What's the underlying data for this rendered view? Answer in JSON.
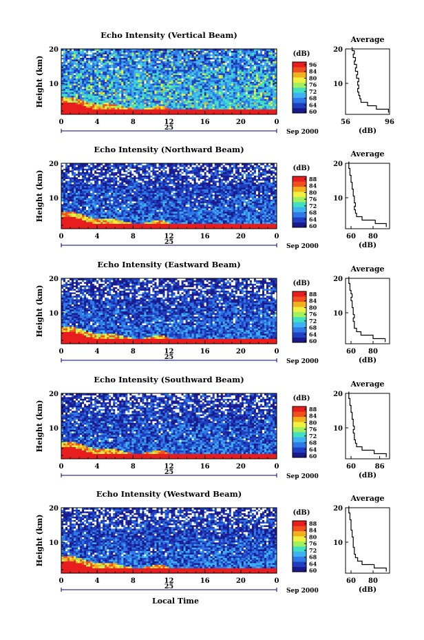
{
  "chart_data": [
    {
      "type": "heatmap",
      "title": "Echo Intensity (Vertical Beam)",
      "ylabel": "Height (km)",
      "x_ticks": [
        "0",
        "4",
        "8",
        "12",
        "16",
        "20",
        "0"
      ],
      "xlim": [
        0,
        24
      ],
      "y_ticks": [
        "10",
        "20"
      ],
      "ylim": [
        1,
        20
      ],
      "date_day": "25",
      "date_month_year": "Sep 2000",
      "colorbar": {
        "unit": "(dB)",
        "ticks": [
          "96",
          "84",
          "80",
          "76",
          "72",
          "68",
          "64",
          "60"
        ],
        "range": [
          60,
          96
        ]
      },
      "profile": {
        "title": "Average",
        "xlabel": "(dB)",
        "x_ticks": [
          "56",
          "96"
        ],
        "xlim": [
          56,
          96
        ],
        "y_ticks": [
          "10",
          "20"
        ],
        "ylim": [
          1,
          20
        ],
        "heights": [
          2,
          3,
          4,
          5,
          6,
          7,
          8,
          9,
          10,
          11,
          12,
          13,
          14,
          15,
          16,
          17,
          18,
          19,
          20
        ],
        "values": [
          95,
          84,
          76,
          70,
          69,
          68,
          67,
          68,
          67,
          68,
          66,
          67,
          65,
          66,
          64,
          65,
          63,
          64,
          62
        ]
      }
    },
    {
      "type": "heatmap",
      "title": "Echo Intensity (Northward Beam)",
      "ylabel": "Height (km)",
      "x_ticks": [
        "0",
        "4",
        "8",
        "12",
        "16",
        "20",
        "0"
      ],
      "xlim": [
        0,
        24
      ],
      "y_ticks": [
        "10",
        "20"
      ],
      "ylim": [
        1,
        20
      ],
      "date_day": "25",
      "date_month_year": "Sep 2000",
      "colorbar": {
        "unit": "(dB)",
        "ticks": [
          "88",
          "84",
          "80",
          "76",
          "72",
          "68",
          "64",
          "60"
        ],
        "range": [
          60,
          88
        ]
      },
      "profile": {
        "title": "Average",
        "xlabel": "(dB)",
        "x_ticks": [
          "60",
          "80"
        ],
        "xlim": [
          55,
          95
        ],
        "y_ticks": [
          "10",
          "20"
        ],
        "ylim": [
          1,
          20
        ],
        "heights": [
          2,
          3,
          4,
          5,
          6,
          7,
          8,
          9,
          10,
          11,
          12,
          13,
          14,
          15,
          16,
          17,
          18,
          19,
          20
        ],
        "values": [
          92,
          82,
          70,
          65,
          64,
          63,
          64,
          63,
          63,
          62,
          62,
          61,
          61,
          60,
          60,
          59,
          59,
          58,
          58
        ]
      }
    },
    {
      "type": "heatmap",
      "title": "Echo Intensity (Eastward Beam)",
      "ylabel": "Height (km)",
      "x_ticks": [
        "0",
        "4",
        "8",
        "12",
        "16",
        "20",
        "0"
      ],
      "xlim": [
        0,
        24
      ],
      "y_ticks": [
        "10",
        "20"
      ],
      "ylim": [
        1,
        20
      ],
      "date_day": "25",
      "date_month_year": "Sep 2000",
      "colorbar": {
        "unit": "(dB)",
        "ticks": [
          "88",
          "84",
          "80",
          "76",
          "72",
          "68",
          "64",
          "60"
        ],
        "range": [
          60,
          88
        ]
      },
      "profile": {
        "title": "Average",
        "xlabel": "(dB)",
        "x_ticks": [
          "60",
          "80"
        ],
        "xlim": [
          55,
          95
        ],
        "y_ticks": [
          "10",
          "20"
        ],
        "ylim": [
          1,
          20
        ],
        "heights": [
          2,
          3,
          4,
          5,
          6,
          7,
          8,
          9,
          10,
          11,
          12,
          13,
          14,
          15,
          16,
          17,
          18,
          19,
          20
        ],
        "values": [
          91,
          80,
          69,
          65,
          63,
          63,
          62,
          63,
          62,
          62,
          61,
          61,
          60,
          61,
          60,
          59,
          59,
          58,
          58
        ]
      }
    },
    {
      "type": "heatmap",
      "title": "Echo Intensity (Southward Beam)",
      "ylabel": "Height (km)",
      "x_ticks": [
        "0",
        "4",
        "8",
        "12",
        "16",
        "20",
        "0"
      ],
      "xlim": [
        0,
        24
      ],
      "y_ticks": [
        "10",
        "20"
      ],
      "ylim": [
        1,
        20
      ],
      "date_day": "25",
      "date_month_year": "Sep 2000",
      "colorbar": {
        "unit": "(dB)",
        "ticks": [
          "88",
          "84",
          "80",
          "76",
          "72",
          "68",
          "64",
          "60"
        ],
        "range": [
          60,
          88
        ]
      },
      "profile": {
        "title": "Average",
        "xlabel": "(dB)",
        "x_ticks": [
          "60",
          "86"
        ],
        "xlim": [
          55,
          95
        ],
        "y_ticks": [
          "10",
          "20"
        ],
        "ylim": [
          1,
          20
        ],
        "heights": [
          2,
          3,
          4,
          5,
          6,
          7,
          8,
          9,
          10,
          11,
          12,
          13,
          14,
          15,
          16,
          17,
          18,
          19,
          20
        ],
        "values": [
          92,
          81,
          70,
          65,
          64,
          63,
          63,
          62,
          63,
          62,
          62,
          61,
          61,
          60,
          60,
          59,
          59,
          58,
          58
        ]
      }
    },
    {
      "type": "heatmap",
      "title": "Echo Intensity (Westward Beam)",
      "ylabel": "Height (km)",
      "x_ticks": [
        "0",
        "4",
        "8",
        "12",
        "16",
        "20",
        "0"
      ],
      "xlim": [
        0,
        24
      ],
      "y_ticks": [
        "10",
        "20"
      ],
      "ylim": [
        1,
        20
      ],
      "date_day": "25",
      "date_month_year": "Sep 2000",
      "colorbar": {
        "unit": "(dB)",
        "ticks": [
          "88",
          "84",
          "80",
          "76",
          "72",
          "68",
          "64",
          "60"
        ],
        "range": [
          60,
          88
        ]
      },
      "profile": {
        "title": "Average",
        "xlabel": "(dB)",
        "x_ticks": [
          "60",
          "80"
        ],
        "xlim": [
          55,
          95
        ],
        "y_ticks": [
          "10",
          "20"
        ],
        "ylim": [
          1,
          20
        ],
        "heights": [
          2,
          3,
          4,
          5,
          6,
          7,
          8,
          9,
          10,
          11,
          12,
          13,
          14,
          15,
          16,
          17,
          18,
          19,
          20
        ],
        "values": [
          92,
          81,
          70,
          66,
          64,
          63,
          63,
          62,
          62,
          62,
          61,
          61,
          60,
          60,
          60,
          59,
          59,
          58,
          58
        ]
      }
    }
  ],
  "xlabel_bottom": "Local Time",
  "colorscale": [
    "#1a1a8c",
    "#1f3fbf",
    "#2f78e6",
    "#3fb0f0",
    "#40e0c0",
    "#a0f060",
    "#f0f040",
    "#f0b020",
    "#f05020",
    "#e81e1e"
  ],
  "colors": {
    "strong_echo": "#e81e1e",
    "gap": "#ffffff",
    "line": "#000000",
    "date_axis": "#000080"
  }
}
